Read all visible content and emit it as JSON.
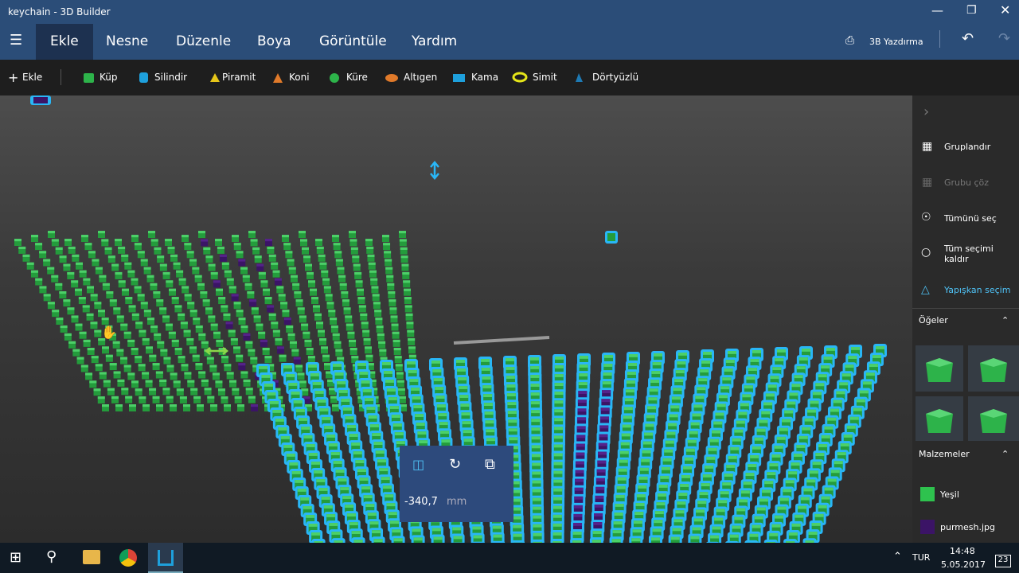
{
  "window": {
    "title": "keychain - 3D Builder"
  },
  "menu": {
    "tabs": [
      "Ekle",
      "Nesne",
      "Düzenle",
      "Boya",
      "Görüntüle",
      "Yardım"
    ],
    "print": "3B Yazdırma"
  },
  "toolbar": {
    "add": "Ekle",
    "shapes": [
      "Küp",
      "Silindir",
      "Piramit",
      "Koni",
      "Küre",
      "Altıgen",
      "Kama",
      "Simit",
      "Dörtyüzlü"
    ]
  },
  "side_panel": {
    "actions": [
      "Gruplandır",
      "Grubu çöz",
      "Tümünü seç",
      "Tüm seçimi kaldır",
      "Yapışkan seçim"
    ],
    "items_title": "Öğeler",
    "materials_title": "Malzemeler",
    "materials": [
      "Yeşil",
      "purmesh.jpg"
    ]
  },
  "move_panel": {
    "value": "-340,7",
    "unit": "mm"
  },
  "taskbar": {
    "language": "TUR",
    "time": "14:48",
    "date": "5.05.2017",
    "notifications": "23"
  }
}
